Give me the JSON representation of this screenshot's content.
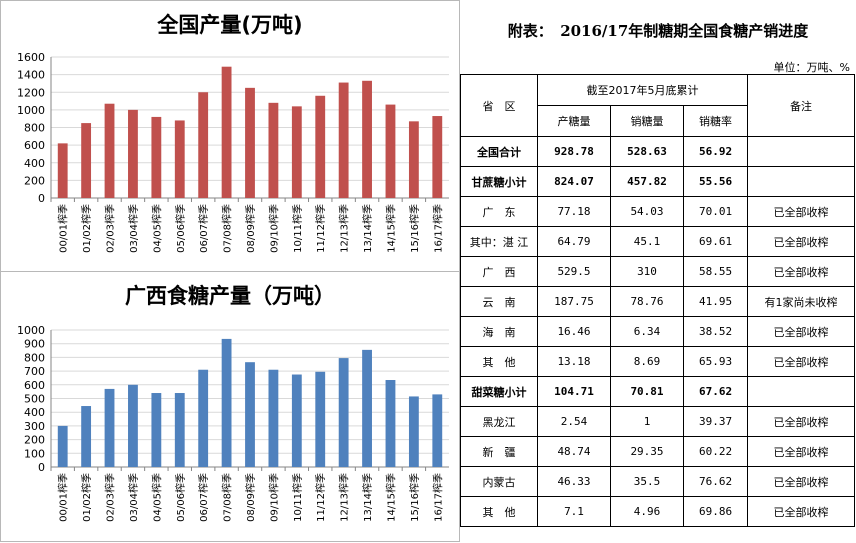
{
  "chart_data": [
    {
      "type": "bar",
      "title": "全国产量(万吨)",
      "categories": [
        "00/01榨季",
        "01/02榨季",
        "02/03榨季",
        "03/04榨季",
        "04/05榨季",
        "05/06榨季",
        "06/07榨季",
        "07/08榨季",
        "08/09榨季",
        "09/10榨季",
        "10/11榨季",
        "11/12榨季",
        "12/13榨季",
        "13/14榨季",
        "14/15榨季",
        "15/16榨季",
        "16/17榨季"
      ],
      "values": [
        620,
        850,
        1070,
        1000,
        920,
        880,
        1200,
        1490,
        1250,
        1080,
        1040,
        1160,
        1310,
        1330,
        1060,
        870,
        930
      ],
      "ylim": [
        0,
        1600
      ],
      "yticks": [
        0,
        200,
        400,
        600,
        800,
        1000,
        1200,
        1400,
        1600
      ],
      "color": "#c0504d",
      "xlabel": "",
      "ylabel": ""
    },
    {
      "type": "bar",
      "title": "广西食糖产量（万吨）",
      "categories": [
        "00/01榨季",
        "01/02榨季",
        "02/03榨季",
        "03/04榨季",
        "04/05榨季",
        "05/06榨季",
        "06/07榨季",
        "07/08榨季",
        "08/09榨季",
        "09/10榨季",
        "10/11榨季",
        "11/12榨季",
        "12/13榨季",
        "13/14榨季",
        "14/15榨季",
        "15/16榨季",
        "16/17榨季"
      ],
      "values": [
        300,
        445,
        570,
        600,
        540,
        540,
        710,
        935,
        765,
        710,
        675,
        695,
        795,
        855,
        635,
        515,
        530
      ],
      "ylim": [
        0,
        1000
      ],
      "yticks": [
        0,
        100,
        200,
        300,
        400,
        500,
        600,
        700,
        800,
        900,
        1000
      ],
      "color": "#4f81bd",
      "xlabel": "",
      "ylabel": ""
    }
  ],
  "table": {
    "title": "附表：　2016/17年制糖期全国食糖产销进度",
    "unit": "单位：万吨、%",
    "header": {
      "region": "省　区",
      "group": "截至2017年5月底累计",
      "remark": "备注",
      "cols": [
        "产糖量",
        "销糖量",
        "销糖率"
      ]
    },
    "rows": [
      {
        "region": "全国合计",
        "prod": "928.78",
        "sales": "528.63",
        "rate": "56.92",
        "remark": "",
        "bold": true
      },
      {
        "region": "甘蔗糖小计",
        "prod": "824.07",
        "sales": "457.82",
        "rate": "55.56",
        "remark": "",
        "bold": true
      },
      {
        "region": "广　东",
        "prod": "77.18",
        "sales": "54.03",
        "rate": "70.01",
        "remark": "已全部收榨",
        "bold": false
      },
      {
        "region": "其中：湛 江",
        "prod": "64.79",
        "sales": "45.1",
        "rate": "69.61",
        "remark": "已全部收榨",
        "bold": false
      },
      {
        "region": "广　西",
        "prod": "529.5",
        "sales": "310",
        "rate": "58.55",
        "remark": "已全部收榨",
        "bold": false
      },
      {
        "region": "云　南",
        "prod": "187.75",
        "sales": "78.76",
        "rate": "41.95",
        "remark": "有1家尚未收榨",
        "bold": false
      },
      {
        "region": "海　南",
        "prod": "16.46",
        "sales": "6.34",
        "rate": "38.52",
        "remark": "已全部收榨",
        "bold": false
      },
      {
        "region": "其　他",
        "prod": "13.18",
        "sales": "8.69",
        "rate": "65.93",
        "remark": "已全部收榨",
        "bold": false
      },
      {
        "region": "甜菜糖小计",
        "prod": "104.71",
        "sales": "70.81",
        "rate": "67.62",
        "remark": "",
        "bold": true
      },
      {
        "region": "黑龙江",
        "prod": "2.54",
        "sales": "1",
        "rate": "39.37",
        "remark": "已全部收榨",
        "bold": false
      },
      {
        "region": "新　疆",
        "prod": "48.74",
        "sales": "29.35",
        "rate": "60.22",
        "remark": "已全部收榨",
        "bold": false
      },
      {
        "region": "内蒙古",
        "prod": "46.33",
        "sales": "35.5",
        "rate": "76.62",
        "remark": "已全部收榨",
        "bold": false
      },
      {
        "region": "其　他",
        "prod": "7.1",
        "sales": "4.96",
        "rate": "69.86",
        "remark": "已全部收榨",
        "bold": false
      }
    ]
  }
}
